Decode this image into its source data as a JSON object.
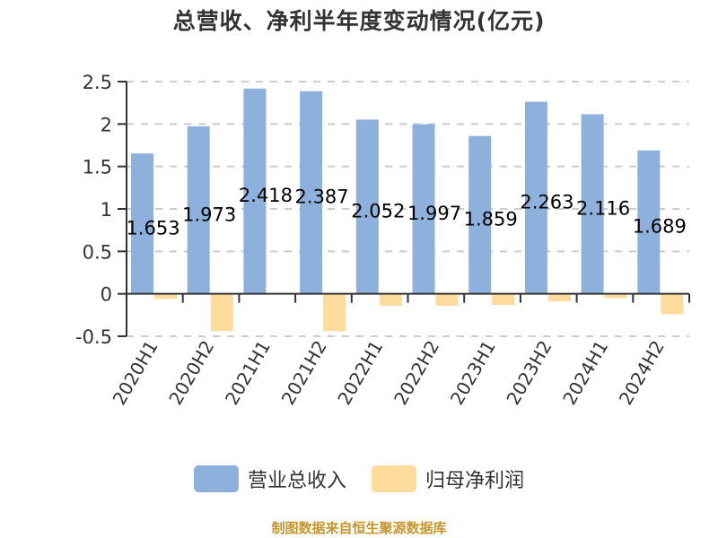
{
  "title": "总营收、净利半年度变动情况(亿元)",
  "legend": [
    {
      "label": "营业总收入",
      "color": "#8EB0DD"
    },
    {
      "label": "归母净利润",
      "color": "#FFDB9E"
    }
  ],
  "source": "制图数据来自恒生聚源数据库",
  "chart_data": {
    "type": "bar",
    "title": "总营收、净利半年度变动情况(亿元)",
    "xlabel": "",
    "ylabel": "",
    "categories": [
      "2020H1",
      "2020H2",
      "2021H1",
      "2021H2",
      "2022H1",
      "2022H2",
      "2023H1",
      "2023H2",
      "2024H1",
      "2024H2"
    ],
    "series": [
      {
        "name": "营业总收入",
        "color": "#8EB0DD",
        "values": [
          1.653,
          1.973,
          2.418,
          2.387,
          2.052,
          1.997,
          1.859,
          2.263,
          2.116,
          1.689
        ],
        "data_labels": [
          "1.653",
          "1.973",
          "2.418",
          "2.387",
          "2.052",
          "1.997",
          "1.859",
          "2.263",
          "2.116",
          "1.689"
        ]
      },
      {
        "name": "归母净利润",
        "color": "#FFDB9E",
        "values": [
          -0.06,
          -0.44,
          0.005,
          -0.44,
          -0.14,
          -0.14,
          -0.13,
          -0.09,
          -0.05,
          -0.24
        ]
      }
    ],
    "yticks": [
      "-0.5",
      "0",
      "0.5",
      "1",
      "1.5",
      "2",
      "2.5"
    ],
    "ylim": [
      -0.5,
      2.5
    ],
    "grid": true,
    "legend_position": "bottom"
  }
}
